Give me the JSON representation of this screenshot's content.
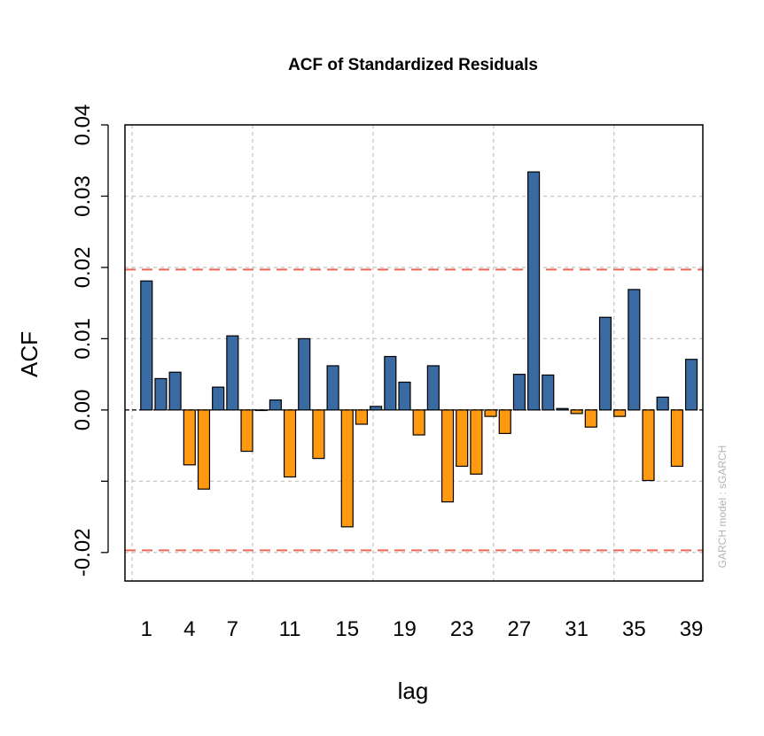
{
  "chart_data": {
    "type": "bar",
    "title": "ACF of Standardized Residuals",
    "xlabel": "lag",
    "ylabel": "ACF",
    "side_note": "GARCH model :  sGARCH",
    "x_tick_labels": [
      "1",
      "4",
      "7",
      "11",
      "15",
      "19",
      "23",
      "27",
      "31",
      "35",
      "39"
    ],
    "x_tick_lags": [
      1,
      4,
      7,
      11,
      15,
      19,
      23,
      27,
      31,
      35,
      39
    ],
    "y_tick_labels": [
      "-0.02",
      "",
      "0.00",
      "0.01",
      "0.02",
      "0.03",
      "0.04"
    ],
    "y_tick_values": [
      -0.02,
      -0.01,
      0.0,
      0.01,
      0.02,
      0.03,
      0.04
    ],
    "x_grid_lags": [
      0,
      8.4,
      16.8,
      25.2,
      33.6
    ],
    "ylim": [
      -0.024,
      0.04
    ],
    "xlim": [
      -0.5,
      39.8
    ],
    "confidence_bound": 0.0197,
    "grid": true,
    "lags": [
      1,
      2,
      3,
      4,
      5,
      6,
      7,
      8,
      9,
      10,
      11,
      12,
      13,
      14,
      15,
      16,
      17,
      18,
      19,
      20,
      21,
      22,
      23,
      24,
      25,
      26,
      27,
      28,
      29,
      30,
      31,
      32,
      33,
      34,
      35,
      36,
      37,
      38,
      39
    ],
    "values": [
      0.0181,
      0.0044,
      0.0053,
      -0.0077,
      -0.0111,
      0.0032,
      0.0104,
      -0.0058,
      0.0,
      0.0014,
      -0.0094,
      0.01,
      -0.0068,
      0.0062,
      -0.0164,
      -0.002,
      0.0005,
      0.0075,
      0.0039,
      -0.0035,
      0.0062,
      -0.0129,
      -0.0079,
      -0.009,
      -0.0009,
      -0.0033,
      0.005,
      0.0334,
      0.0049,
      0.0002,
      -0.0005,
      -0.0024,
      0.013,
      -0.0009,
      0.0169,
      -0.0099,
      0.0018,
      -0.0079,
      0.0071
    ]
  },
  "colors": {
    "positive": "#3a6aa2",
    "negative": "#ff9911",
    "confidence": "#ee6655",
    "grid": "#c8c8c8",
    "side_note": "#b3b3b3"
  }
}
